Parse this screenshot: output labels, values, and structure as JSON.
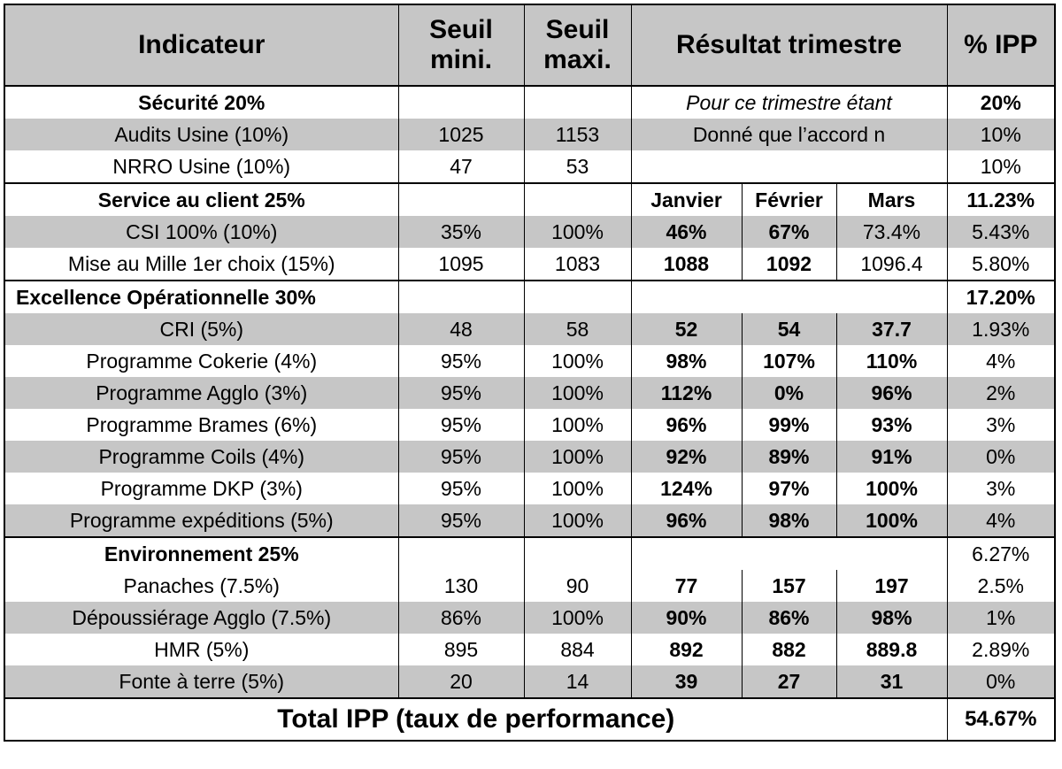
{
  "headers": {
    "indicator": "Indicateur",
    "min": "Seuil mini.",
    "max": "Seuil maxi.",
    "result": "Résultat trimestre",
    "ipp": "% IPP"
  },
  "months": [
    "Janvier",
    "Février",
    "Mars"
  ],
  "securite": {
    "title": "Sécurité 20%",
    "ipp": "20%",
    "note1": "Pour ce trimestre étant",
    "note2": "Donné que l’accord n",
    "rows": [
      {
        "label": "Audits Usine (10%)",
        "min": "1025",
        "max": "1153",
        "ipp": "10%"
      },
      {
        "label": "NRRO Usine (10%)",
        "min": "47",
        "max": "53",
        "ipp": "10%"
      }
    ]
  },
  "service": {
    "title": "Service au client 25%",
    "ipp": "11.23%",
    "rows": [
      {
        "label": "CSI 100% (10%)",
        "min": "35%",
        "max": "100%",
        "jan": "46%",
        "feb": "67%",
        "mar": "73.4%",
        "ipp": "5.43%"
      },
      {
        "label": "Mise au Mille 1er choix (15%)",
        "min": "1095",
        "max": "1083",
        "jan": "1088",
        "feb": "1092",
        "mar": "1096.4",
        "ipp": "5.80%"
      }
    ]
  },
  "excellence": {
    "title": "Excellence Opérationnelle 30%",
    "ipp": "17.20%",
    "rows": [
      {
        "label": "CRI (5%)",
        "min": "48",
        "max": "58",
        "jan": "52",
        "feb": "54",
        "mar": "37.7",
        "ipp": "1.93%"
      },
      {
        "label": "Programme Cokerie (4%)",
        "min": "95%",
        "max": "100%",
        "jan": "98%",
        "feb": "107%",
        "mar": "110%",
        "ipp": "4%"
      },
      {
        "label": "Programme Agglo (3%)",
        "min": "95%",
        "max": "100%",
        "jan": "112%",
        "feb": "0%",
        "mar": "96%",
        "ipp": "2%"
      },
      {
        "label": "Programme Brames (6%)",
        "min": "95%",
        "max": "100%",
        "jan": "96%",
        "feb": "99%",
        "mar": "93%",
        "ipp": "3%"
      },
      {
        "label": "Programme Coils (4%)",
        "min": "95%",
        "max": "100%",
        "jan": "92%",
        "feb": "89%",
        "mar": "91%",
        "ipp": "0%"
      },
      {
        "label": "Programme DKP (3%)",
        "min": "95%",
        "max": "100%",
        "jan": "124%",
        "feb": "97%",
        "mar": "100%",
        "ipp": "3%"
      },
      {
        "label": "Programme expéditions (5%)",
        "min": "95%",
        "max": "100%",
        "jan": "96%",
        "feb": "98%",
        "mar": "100%",
        "ipp": "4%"
      }
    ]
  },
  "environnement": {
    "title": "Environnement 25%",
    "ipp": "6.27%",
    "rows": [
      {
        "label": "Panaches (7.5%)",
        "min": "130",
        "max": "90",
        "jan": "77",
        "feb": "157",
        "mar": "197",
        "ipp": "2.5%"
      },
      {
        "label": "Dépoussiérage Agglo (7.5%)",
        "min": "86%",
        "max": "100%",
        "jan": "90%",
        "feb": "86%",
        "mar": "98%",
        "ipp": "1%"
      },
      {
        "label": "HMR (5%)",
        "min": "895",
        "max": "884",
        "jan": "892",
        "feb": "882",
        "mar": "889.8",
        "ipp": "2.89%"
      },
      {
        "label": "Fonte à terre (5%)",
        "min": "20",
        "max": "14",
        "jan": "39",
        "feb": "27",
        "mar": "31",
        "ipp": "0%"
      }
    ]
  },
  "total": {
    "label": "Total IPP (taux de performance)",
    "value": "54.67%"
  },
  "colors": {
    "good": "#22a43a",
    "bad": "#e8131b",
    "header_bg": "#c6c6c6"
  }
}
